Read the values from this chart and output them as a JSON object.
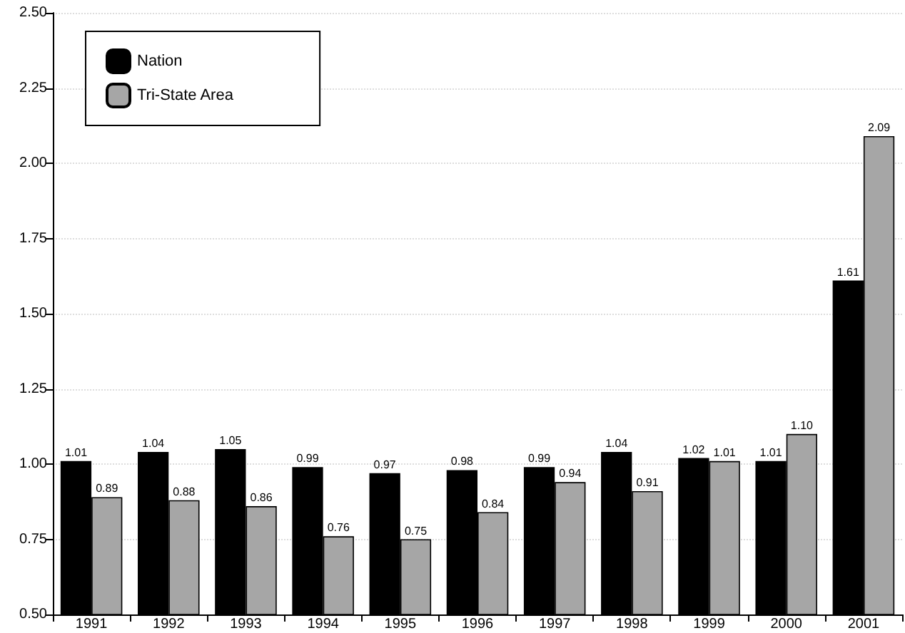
{
  "chart_data": {
    "type": "bar",
    "categories": [
      "1991",
      "1992",
      "1993",
      "1994",
      "1995",
      "1996",
      "1997",
      "1998",
      "1999",
      "2000",
      "2001"
    ],
    "series": [
      {
        "name": "Nation",
        "color": "#000000",
        "values": [
          1.01,
          1.04,
          1.05,
          0.99,
          0.97,
          0.98,
          0.99,
          1.04,
          1.02,
          1.01,
          1.61
        ],
        "value_labels": [
          "1.01",
          "1.04",
          "1.05",
          "0.99",
          "0.97",
          "0.98",
          "0.99",
          "1.04",
          "1.02",
          "1.01",
          "1.61"
        ]
      },
      {
        "name": "Tri-State Area",
        "color": "#a6a6a6",
        "values": [
          0.89,
          0.88,
          0.86,
          0.76,
          0.75,
          0.84,
          0.94,
          0.91,
          1.01,
          1.1,
          2.09
        ],
        "value_labels": [
          "0.89",
          "0.88",
          "0.86",
          "0.76",
          "0.75",
          "0.84",
          "0.94",
          "0.91",
          "1.01",
          "1.10",
          "2.09"
        ]
      }
    ],
    "ylim": [
      0.5,
      2.5
    ],
    "yticks": [
      {
        "value": 0.5,
        "label": "0.50"
      },
      {
        "value": 0.75,
        "label": "0.75"
      },
      {
        "value": 1,
        "label": "1.00"
      },
      {
        "value": 1.25,
        "label": "1.25"
      },
      {
        "value": 1.5,
        "label": "1.50"
      },
      {
        "value": 1.75,
        "label": "1.75"
      },
      {
        "value": 2,
        "label": "2.00"
      },
      {
        "value": 2.25,
        "label": "2.25"
      },
      {
        "value": 2.5,
        "label": "2.50"
      }
    ],
    "grid": "y",
    "legend": "top left"
  }
}
